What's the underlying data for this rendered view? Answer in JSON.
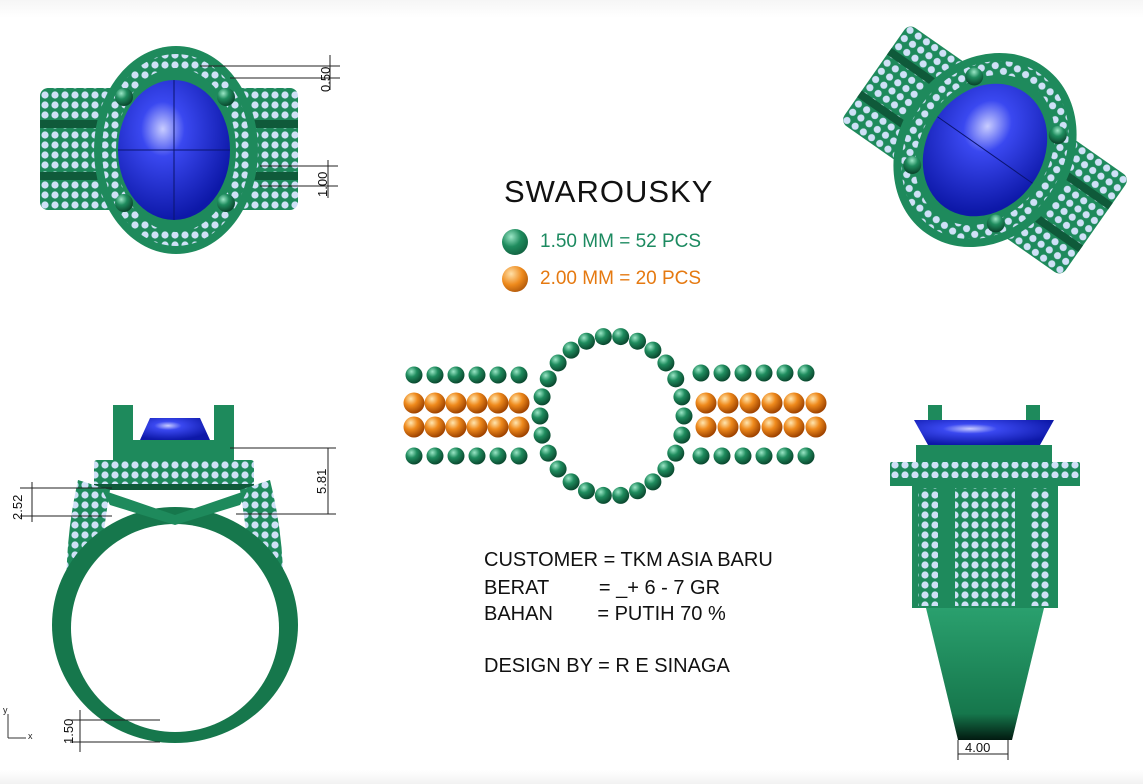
{
  "title": "SWAROUSKY",
  "legend": [
    {
      "label": "1.50 MM = 52 PCS",
      "color": "#1c8a60"
    },
    {
      "label": "2.00 MM = 20 PCS",
      "color": "#e57910"
    }
  ],
  "info": {
    "customer": "CUSTOMER = TKM ASIA BARU",
    "berat": "BERAT         = _+ 6 - 7 GR",
    "bahan": "BAHAN        = PUTIH 70 %",
    "design": "DESIGN BY = R E SINAGA"
  },
  "dimensions": {
    "top_a": "0.50",
    "top_b": "1.00",
    "side_a": "2.52",
    "side_b": "5.81",
    "side_c": "1.50",
    "front_a": "4.00"
  },
  "axis": {
    "x": "x",
    "y": "y"
  },
  "colors": {
    "metal": "#1e8a5c",
    "metal_dark": "#0f5a3a",
    "gem": "#2233dd",
    "stone_small": "#c8d8f4",
    "stone_orange": "#ee8a1c",
    "stone_green": "#1f8c5e"
  }
}
